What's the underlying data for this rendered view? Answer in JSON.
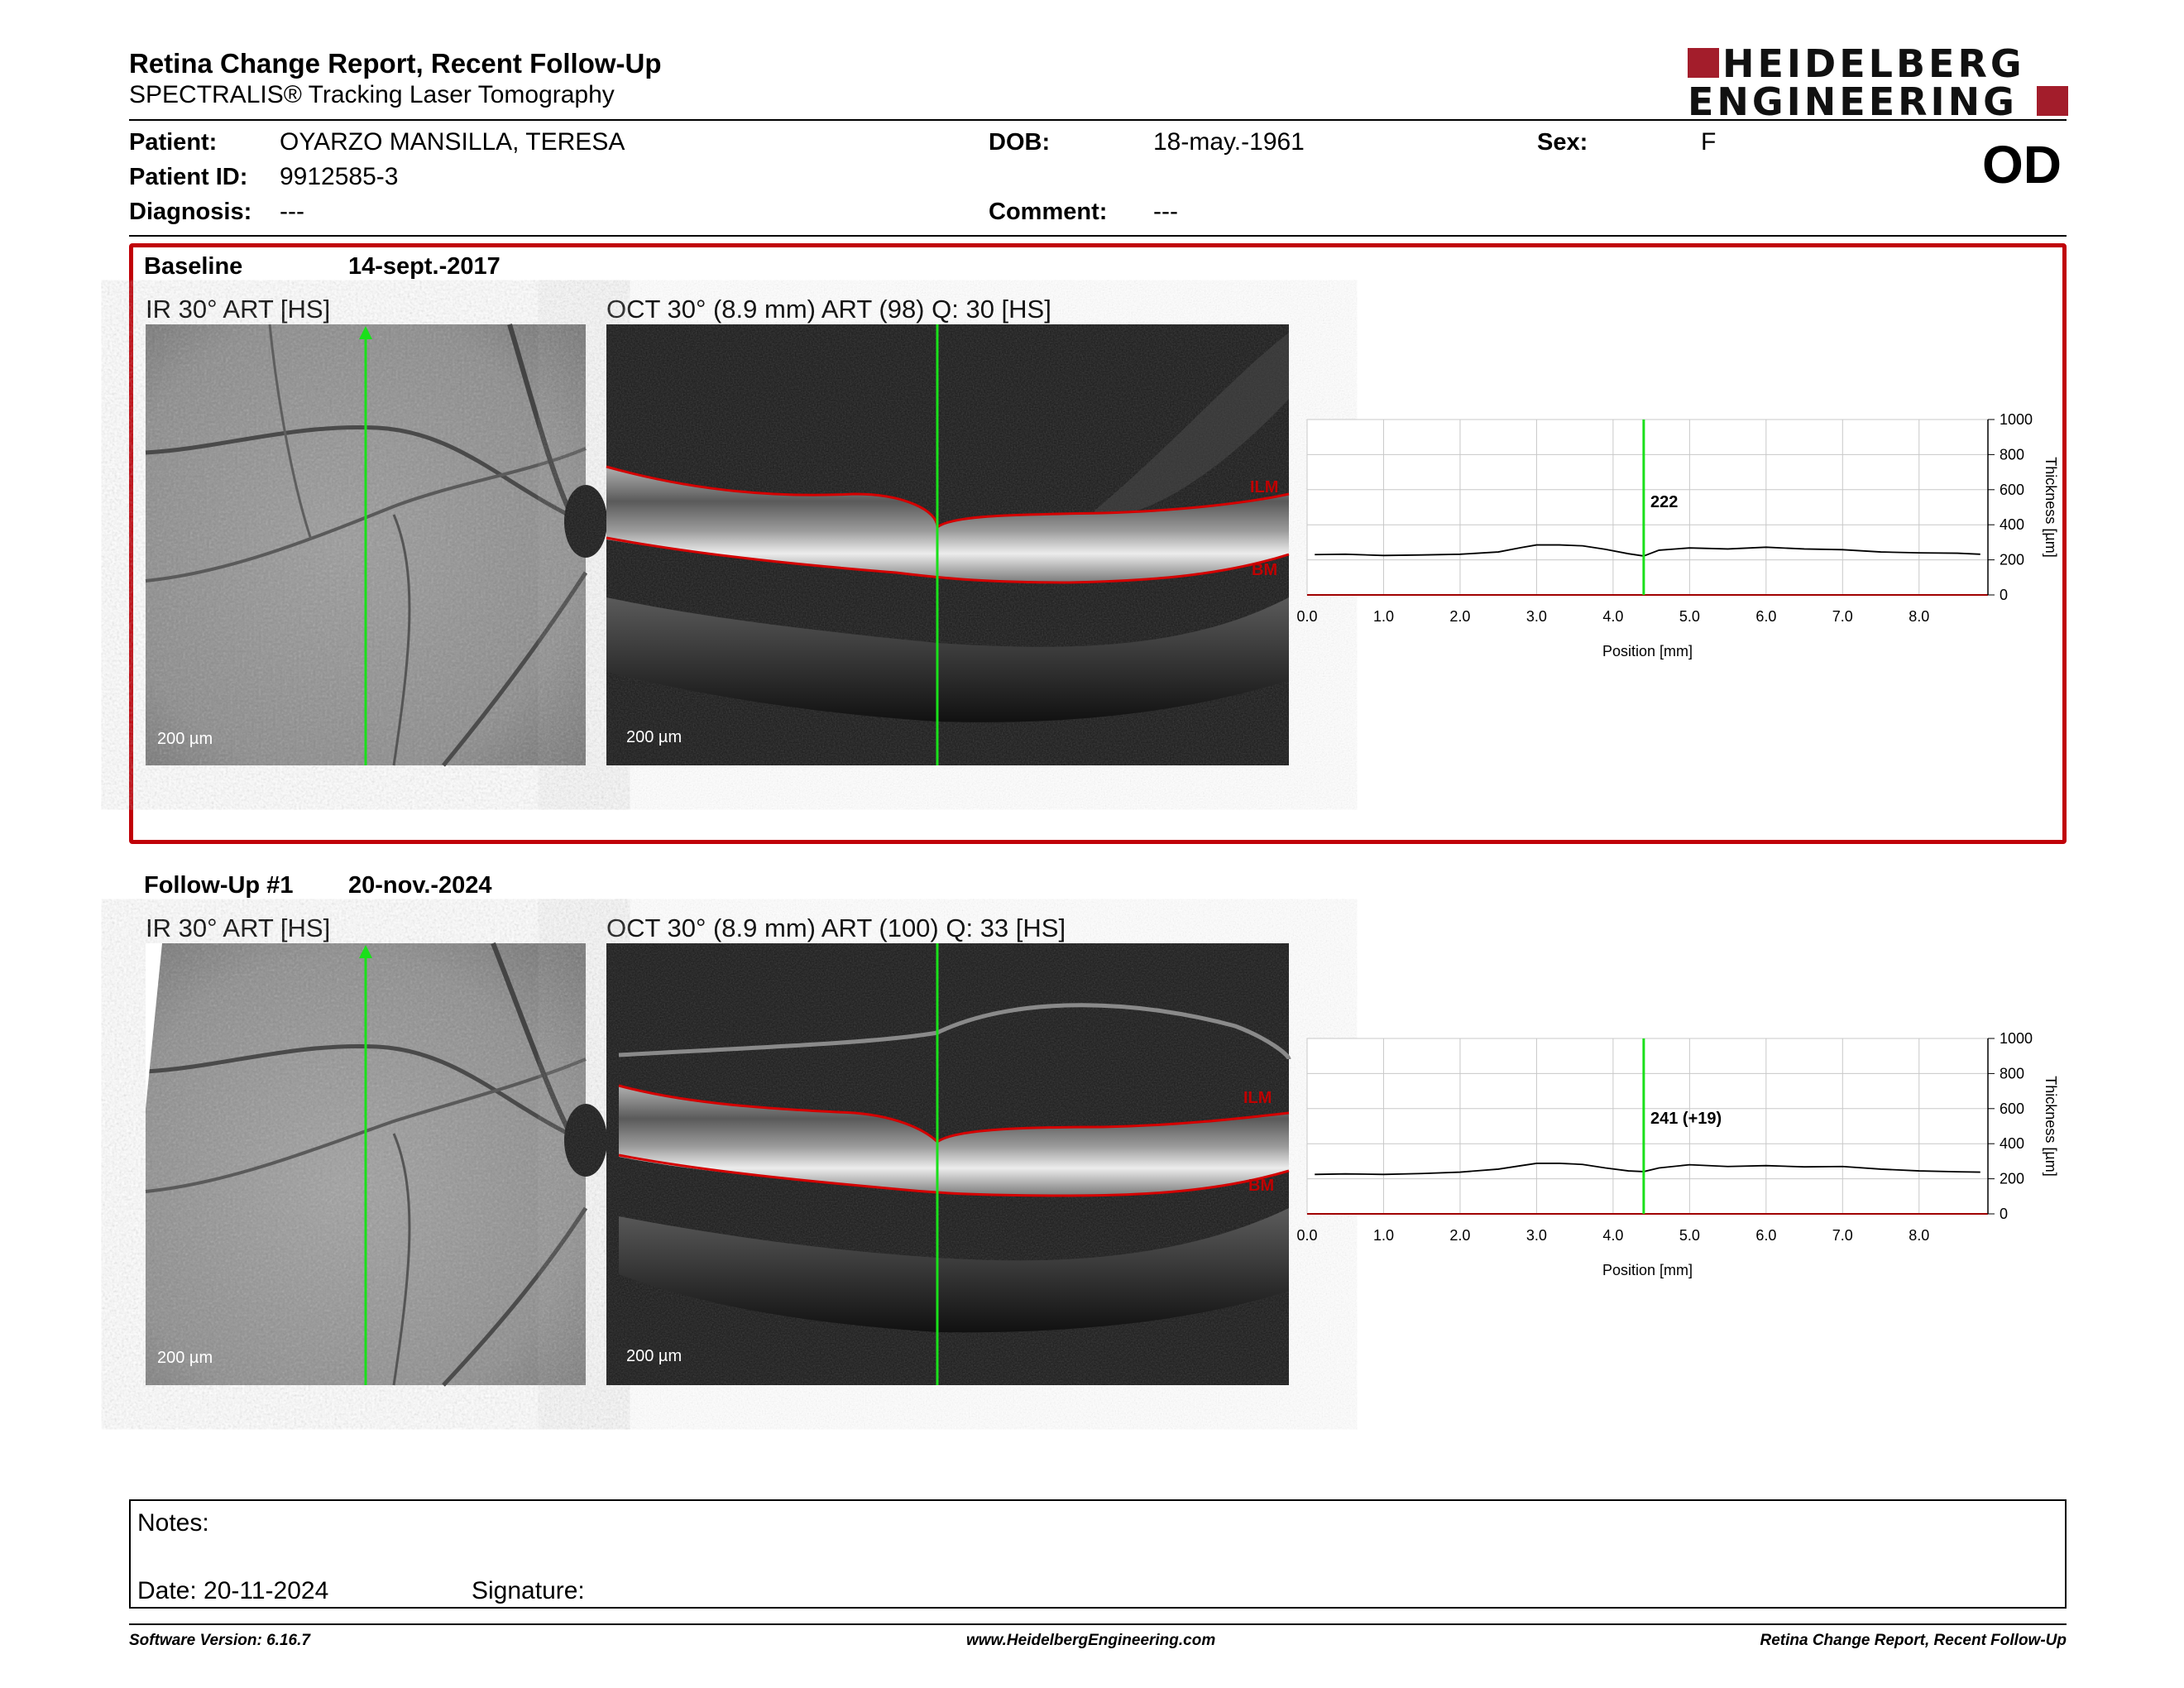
{
  "header": {
    "title": "Retina Change Report, Recent Follow-Up",
    "subtitle": "SPECTRALIS® Tracking Laser Tomography",
    "logo_line1": "HEIDELBERG",
    "logo_line2": "ENGINEERING",
    "brand_color": "#a31d2b"
  },
  "patient": {
    "name_label": "Patient:",
    "name": "OYARZO MANSILLA, TERESA",
    "id_label": "Patient ID:",
    "id": "9912585-3",
    "diagnosis_label": "Diagnosis:",
    "diagnosis": "---",
    "dob_label": "DOB:",
    "dob": "18-may.-1961",
    "comment_label": "Comment:",
    "comment": "---",
    "sex_label": "Sex:",
    "sex": "F",
    "eye": "OD"
  },
  "baseline": {
    "label": "Baseline",
    "date": "14-sept.-2017",
    "ir_title": "IR 30° ART [HS]",
    "ir_scale": "200 µm",
    "oct_title": "OCT 30° (8.9 mm) ART (98) Q: 30 [HS]",
    "oct_scale": "200 µm",
    "ilm_label": "ILM",
    "bm_label": "BM",
    "thickness_readout": "222"
  },
  "followup": {
    "label": "Follow-Up #1",
    "date": "20-nov.-2024",
    "ir_title": "IR 30° ART [HS]",
    "ir_scale": "200 µm",
    "oct_title": "OCT 30° (8.9 mm) ART (100) Q: 33 [HS]",
    "oct_scale": "200 µm",
    "ilm_label": "ILM",
    "bm_label": "BM",
    "thickness_readout": "241 (+19)"
  },
  "chart_data": [
    {
      "type": "line",
      "xlabel": "Position [mm]",
      "ylabel": "Thickness [µm]",
      "xlim": [
        0,
        8.9
      ],
      "ylim": [
        0,
        1000
      ],
      "x_ticks": [
        "0.0",
        "1.0",
        "2.0",
        "3.0",
        "4.0",
        "5.0",
        "6.0",
        "7.0",
        "8.0"
      ],
      "y_ticks": [
        "0",
        "200",
        "400",
        "600",
        "800",
        "1000"
      ],
      "grid": true,
      "cursor_x": 4.4,
      "cursor_label": "222",
      "series": [
        {
          "x": [
            0.1,
            0.5,
            1.0,
            1.5,
            2.0,
            2.5,
            2.8,
            3.0,
            3.3,
            3.6,
            3.9,
            4.2,
            4.4,
            4.6,
            5.0,
            5.5,
            6.0,
            6.5,
            7.0,
            7.5,
            8.0,
            8.5,
            8.8
          ],
          "y": [
            230,
            232,
            225,
            228,
            232,
            245,
            270,
            285,
            285,
            280,
            260,
            235,
            222,
            255,
            268,
            262,
            272,
            262,
            258,
            245,
            240,
            238,
            232
          ]
        }
      ]
    },
    {
      "type": "line",
      "xlabel": "Position [mm]",
      "ylabel": "Thickness [µm]",
      "xlim": [
        0,
        8.9
      ],
      "ylim": [
        0,
        1000
      ],
      "x_ticks": [
        "0.0",
        "1.0",
        "2.0",
        "3.0",
        "4.0",
        "5.0",
        "6.0",
        "7.0",
        "8.0"
      ],
      "y_ticks": [
        "0",
        "200",
        "400",
        "600",
        "800",
        "1000"
      ],
      "grid": true,
      "cursor_x": 4.4,
      "cursor_label": "241 (+19)",
      "series": [
        {
          "x": [
            0.1,
            0.5,
            1.0,
            1.5,
            2.0,
            2.5,
            2.8,
            3.0,
            3.3,
            3.6,
            3.9,
            4.2,
            4.4,
            4.6,
            5.0,
            5.5,
            6.0,
            6.5,
            7.0,
            7.5,
            8.0,
            8.5,
            8.8
          ],
          "y": [
            225,
            228,
            225,
            230,
            238,
            255,
            275,
            288,
            288,
            282,
            262,
            245,
            241,
            262,
            280,
            270,
            275,
            268,
            270,
            255,
            245,
            240,
            238
          ]
        }
      ]
    }
  ],
  "notes": {
    "notes_label": "Notes:",
    "date_label": "Date: 20-11-2024",
    "signature_label": "Signature:"
  },
  "footer": {
    "left": "Software Version: 6.16.7",
    "center": "www.HeidelbergEngineering.com",
    "right": "Retina Change Report, Recent Follow-Up"
  }
}
